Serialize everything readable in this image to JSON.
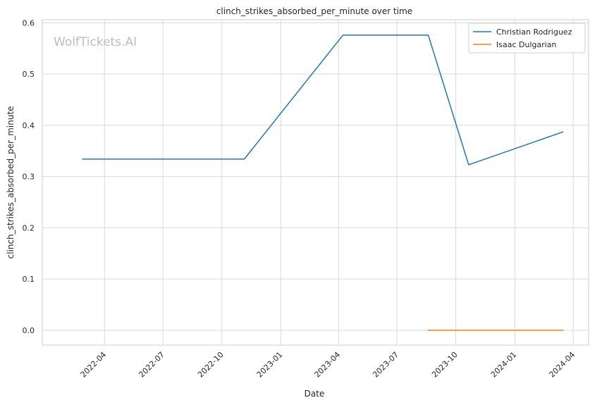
{
  "chart_data": {
    "type": "line",
    "title": "clinch_strikes_absorbed_per_minute over time",
    "xlabel": "Date",
    "ylabel": "clinch_strikes_absorbed_per_minute",
    "watermark": "WolfTickets.AI",
    "x_ticks": [
      "2022-04",
      "2022-07",
      "2022-10",
      "2023-01",
      "2023-04",
      "2023-07",
      "2023-10",
      "2024-01",
      "2024-04"
    ],
    "y_ticks": [
      "0.0",
      "0.1",
      "0.2",
      "0.3",
      "0.4",
      "0.5",
      "0.6"
    ],
    "xlim": [
      "2021-12-25",
      "2024-04-25"
    ],
    "ylim": [
      -0.029,
      0.606
    ],
    "grid": true,
    "legend_position": "top-right",
    "series": [
      {
        "name": "Christian Rodriguez",
        "color": "#1f77b4",
        "points": [
          {
            "x": "2022-02-26",
            "y": 0.334
          },
          {
            "x": "2022-11-05",
            "y": 0.334
          },
          {
            "x": "2023-04-08",
            "y": 0.576
          },
          {
            "x": "2023-08-19",
            "y": 0.576
          },
          {
            "x": "2023-10-21",
            "y": 0.323
          },
          {
            "x": "2024-03-16",
            "y": 0.387
          }
        ]
      },
      {
        "name": "Isaac Dulgarian",
        "color": "#ff7f0e",
        "points": [
          {
            "x": "2023-08-19",
            "y": 0.0
          },
          {
            "x": "2024-03-16",
            "y": 0.0
          }
        ]
      }
    ]
  }
}
